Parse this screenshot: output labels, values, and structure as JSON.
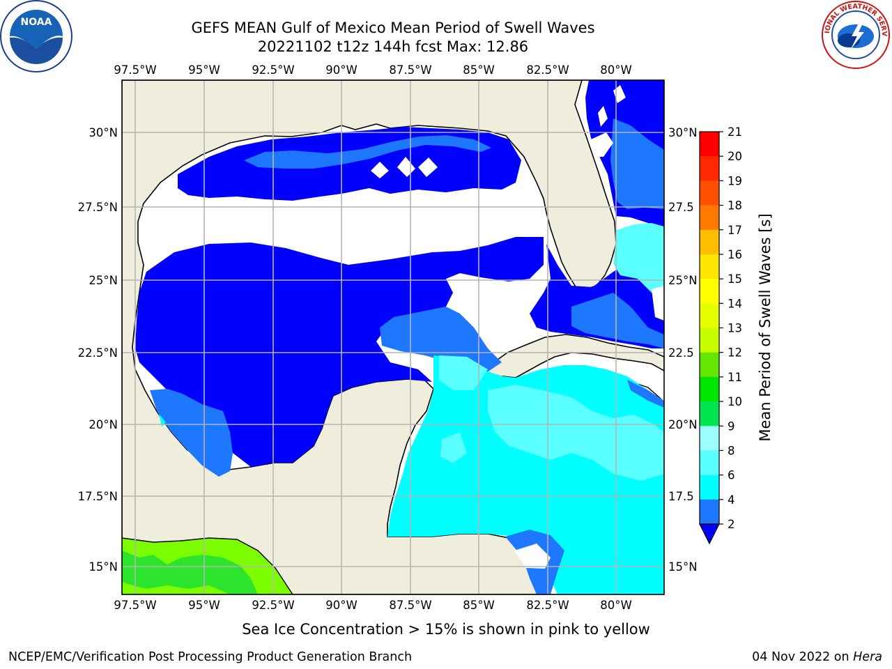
{
  "title": {
    "line1": "GEFS MEAN Gulf of Mexico Mean Period of Swell Waves",
    "line2": "20221102 t12z 144h fcst   Max: 12.86"
  },
  "logos": {
    "left": {
      "name": "noaa-logo",
      "text": "NOAA"
    },
    "right": {
      "name": "nws-logo",
      "text": "NATIONAL WEATHER SERVICE"
    }
  },
  "map": {
    "lon_labels": [
      "97.5°W",
      "95°W",
      "92.5°W",
      "90°W",
      "87.5°W",
      "85°W",
      "82.5°W",
      "80°W"
    ],
    "lat_labels_left": [
      "30°N",
      "27.5°N",
      "25°N",
      "22.5°N",
      "20°N",
      "17.5°N",
      "15°N"
    ],
    "lat_labels_right": [
      "30°N",
      "27.5",
      "25°N",
      "22.5",
      "20°N",
      "17.5",
      "15°N"
    ],
    "colors": {
      "land": "#efeedd",
      "blue": "#0000ff",
      "med_blue": "#1e78ff",
      "cyan": "#00ffff",
      "light_cyan": "#5affff",
      "green": "#2ce42c",
      "lime": "#7cfc00",
      "grid": "#b4b4b4"
    }
  },
  "colorbar": {
    "label": "Mean Period of Swell Waves [s]",
    "ticks": [
      "21",
      "20",
      "19",
      "18",
      "17",
      "16",
      "15",
      "14",
      "13",
      "12",
      "11",
      "10",
      "9",
      "8",
      "6",
      "4",
      "2"
    ],
    "colors": [
      "#ff0000",
      "#ff2800",
      "#ff5000",
      "#ff7800",
      "#ff9b00",
      "#ffbe00",
      "#ffe600",
      "#ffff00",
      "#e6ff00",
      "#c8ff00",
      "#64e600",
      "#00e600",
      "#00e650",
      "#46ff82",
      "#9bffff",
      "#5affff",
      "#00ffff",
      "#1e78ff"
    ],
    "extend_color": "#0000ff"
  },
  "caption": "Sea Ice Concentration > 15% is shown in pink to yellow",
  "footer": {
    "left": "NCEP/EMC/Verification Post Processing Product Generation Branch",
    "right_date": "04 Nov 2022 on ",
    "right_host": "Hera"
  }
}
